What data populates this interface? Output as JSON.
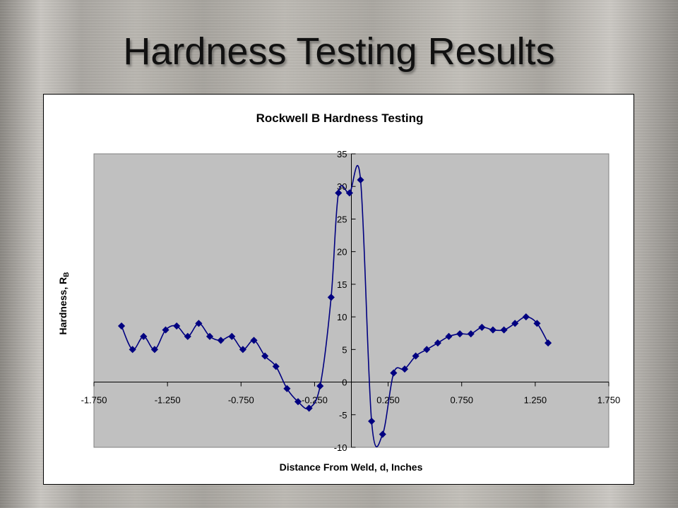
{
  "slide": {
    "title": "Hardness Testing Results"
  },
  "colors": {
    "series": "#000080",
    "plot_bg": "#c0c0c0"
  },
  "chart_data": {
    "type": "line",
    "title": "Rockwell B Hardness Testing",
    "xlabel": "Distance From Weld, d, Inches",
    "ylabel_main": "Hardness, R",
    "ylabel_sub": "B",
    "xlim": [
      -1.75,
      1.75
    ],
    "ylim": [
      -10,
      35
    ],
    "x_ticks": [
      -1.75,
      -1.25,
      -0.75,
      -0.25,
      0.25,
      0.75,
      1.25,
      1.75
    ],
    "x_tick_labels": [
      "-1.750",
      "-1.250",
      "-0.750",
      "-0.250",
      "0.250",
      "0.750",
      "1.250",
      "1.750"
    ],
    "y_ticks": [
      -10,
      -5,
      0,
      5,
      10,
      15,
      20,
      25,
      30,
      35
    ],
    "y_tick_labels": [
      "-10",
      "-5",
      "0",
      "5",
      "10",
      "15",
      "20",
      "25",
      "30",
      "35"
    ],
    "grid": false,
    "legend": "none",
    "series": [
      {
        "x": [
          -1.5625,
          -1.4875,
          -1.4125,
          -1.3375,
          -1.2625,
          -1.1875,
          -1.1125,
          -1.0375,
          -0.9625,
          -0.8875,
          -0.8125,
          -0.7375,
          -0.6625,
          -0.5875,
          -0.5125,
          -0.4375,
          -0.3625,
          -0.2875,
          -0.2125,
          -0.1375,
          -0.0875,
          -0.0125,
          0.0625,
          0.1375,
          0.2125,
          0.2875,
          0.3625,
          0.4375,
          0.5125,
          0.5875,
          0.6625,
          0.7375,
          0.8125,
          0.8875,
          0.9625,
          1.0375,
          1.1125,
          1.1875,
          1.2625,
          1.3375
        ],
        "y": [
          8.6,
          5.0,
          7.0,
          5.0,
          8.0,
          8.6,
          7.0,
          9.0,
          7.0,
          6.4,
          7.0,
          5.0,
          6.4,
          4.0,
          2.4,
          -1.0,
          -3.0,
          -4.0,
          -0.6,
          13.0,
          29.0,
          29.0,
          31.0,
          -6.0,
          -8.0,
          1.4,
          2.0,
          4.0,
          5.0,
          6.0,
          7.0,
          7.4,
          7.4,
          8.4,
          8.0,
          8.0,
          9.0,
          10.0,
          9.0,
          6.0
        ]
      }
    ]
  }
}
